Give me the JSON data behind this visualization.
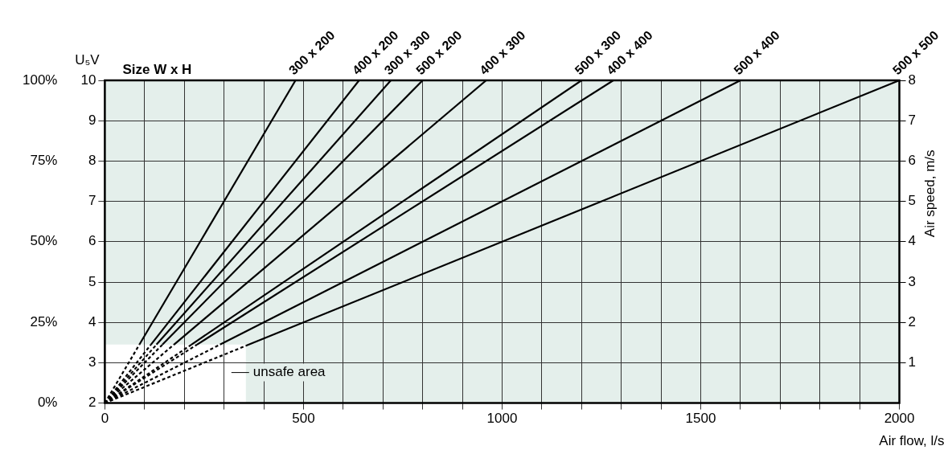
{
  "chart_data": {
    "type": "line",
    "legend_title": "Size W x H",
    "xlabel": "Air flow, l/s",
    "ylabel": "U₅V",
    "y2label": "Air speed, m/s",
    "xlim": [
      0,
      2000
    ],
    "xticks": [
      0,
      {
        "value": 100,
        "label": null
      },
      {
        "value": 200,
        "label": null
      },
      {
        "value": 300,
        "label": null
      },
      {
        "value": 400,
        "label": null
      },
      500,
      {
        "value": 600,
        "label": null
      },
      {
        "value": 700,
        "label": null
      },
      {
        "value": 800,
        "label": null
      },
      {
        "value": 900,
        "label": null
      },
      1000,
      {
        "value": 1100,
        "label": null
      },
      {
        "value": 1200,
        "label": null
      },
      {
        "value": 1300,
        "label": null
      },
      {
        "value": 1400,
        "label": null
      },
      1500,
      {
        "value": 1600,
        "label": null
      },
      {
        "value": 1700,
        "label": null
      },
      {
        "value": 1800,
        "label": null
      },
      {
        "value": 1900,
        "label": null
      },
      2000
    ],
    "ylim": [
      2,
      10
    ],
    "yticks": [
      2,
      3,
      4,
      5,
      6,
      7,
      8,
      9,
      10
    ],
    "y2lim": [
      0,
      8
    ],
    "y2ticks": [
      1,
      2,
      3,
      4,
      5,
      6,
      7,
      8
    ],
    "y3lim": [
      0,
      100
    ],
    "y3ticks": [
      {
        "value": 0,
        "label": "0%"
      },
      {
        "value": 25,
        "label": "25%"
      },
      {
        "value": 50,
        "label": "50%"
      },
      {
        "value": 75,
        "label": "75%"
      },
      {
        "value": 100,
        "label": "100%"
      }
    ],
    "grid": true,
    "marker": "none",
    "line_style": "solid",
    "bands": [
      {
        "axis": "y",
        "from": 3.45,
        "to": 10,
        "color": "#e4efeb"
      },
      {
        "axis": "x",
        "from": 355,
        "to": 2000,
        "color": "#e4efeb"
      }
    ],
    "annotations": [
      "unsafe area"
    ],
    "series": [
      {
        "color": "#000000",
        "line_style": "dashed",
        "x": [
          0,
          87
        ],
        "values": [
          2,
          3.45
        ]
      },
      {
        "color": "#000000",
        "line_style": "dashed",
        "x": [
          0,
          116
        ],
        "values": [
          2,
          3.45
        ]
      },
      {
        "color": "#000000",
        "line_style": "dashed",
        "x": [
          0,
          130
        ],
        "values": [
          2,
          3.45
        ]
      },
      {
        "color": "#000000",
        "line_style": "dashed",
        "x": [
          0,
          145
        ],
        "values": [
          2,
          3.45
        ]
      },
      {
        "color": "#000000",
        "line_style": "dashed",
        "x": [
          0,
          174
        ],
        "values": [
          2,
          3.45
        ]
      },
      {
        "color": "#000000",
        "line_style": "dashed",
        "x": [
          0,
          218
        ],
        "values": [
          2,
          3.45
        ]
      },
      {
        "color": "#000000",
        "line_style": "dashed",
        "x": [
          0,
          232
        ],
        "values": [
          2,
          3.45
        ]
      },
      {
        "color": "#000000",
        "line_style": "dashed",
        "x": [
          0,
          290
        ],
        "values": [
          2,
          3.45
        ]
      },
      {
        "color": "#000000",
        "line_style": "dashed",
        "x": [
          0,
          355
        ],
        "values": [
          2,
          3.42
        ]
      },
      {
        "name": "300 x 200",
        "color": "#000000",
        "x": [
          87,
          480
        ],
        "values": [
          3.45,
          10
        ]
      },
      {
        "name": "400 x 200",
        "color": "#000000",
        "x": [
          116,
          640
        ],
        "values": [
          3.45,
          10
        ]
      },
      {
        "name": "300 x 300",
        "color": "#000000",
        "x": [
          130,
          720
        ],
        "values": [
          3.45,
          10
        ]
      },
      {
        "name": "500 x 200",
        "color": "#000000",
        "x": [
          145,
          800
        ],
        "values": [
          3.45,
          10
        ]
      },
      {
        "name": "400 x 300",
        "color": "#000000",
        "x": [
          174,
          960
        ],
        "values": [
          3.45,
          10
        ]
      },
      {
        "name": "500 x 300",
        "color": "#000000",
        "x": [
          218,
          1200
        ],
        "values": [
          3.45,
          10
        ]
      },
      {
        "name": "400 x 400",
        "color": "#000000",
        "x": [
          232,
          1280
        ],
        "values": [
          3.45,
          10
        ]
      },
      {
        "name": "500 x 400",
        "color": "#000000",
        "x": [
          290,
          1600
        ],
        "values": [
          3.45,
          10
        ]
      },
      {
        "name": "500 x 500",
        "color": "#000000",
        "x": [
          355,
          2000
        ],
        "values": [
          3.42,
          10
        ]
      }
    ]
  }
}
